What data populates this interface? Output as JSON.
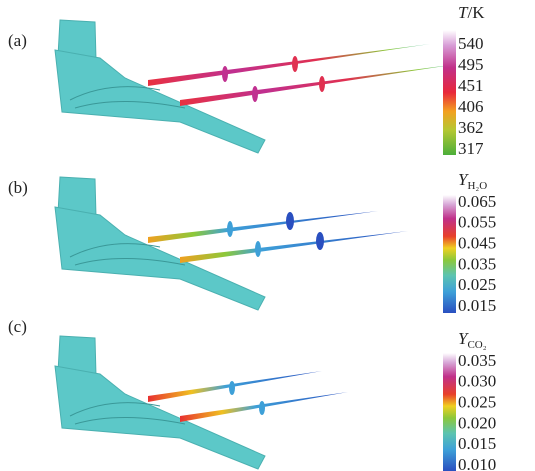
{
  "panels": [
    {
      "label": "(a)",
      "colorbar": {
        "symbol": "T",
        "subscript": null,
        "unit": "/K",
        "ticks": [
          "540",
          "495",
          "451",
          "406",
          "362",
          "317"
        ]
      }
    },
    {
      "label": "(b)",
      "colorbar": {
        "symbol": "Y",
        "subscript": "H₂O",
        "unit": null,
        "ticks": [
          "0.065",
          "0.055",
          "0.045",
          "0.035",
          "0.025",
          "0.015"
        ]
      }
    },
    {
      "label": "(c)",
      "colorbar": {
        "symbol": "Y",
        "subscript": "CO₂",
        "unit": null,
        "ticks": [
          "0.035",
          "0.030",
          "0.025",
          "0.020",
          "0.015",
          "0.010"
        ]
      }
    }
  ]
}
